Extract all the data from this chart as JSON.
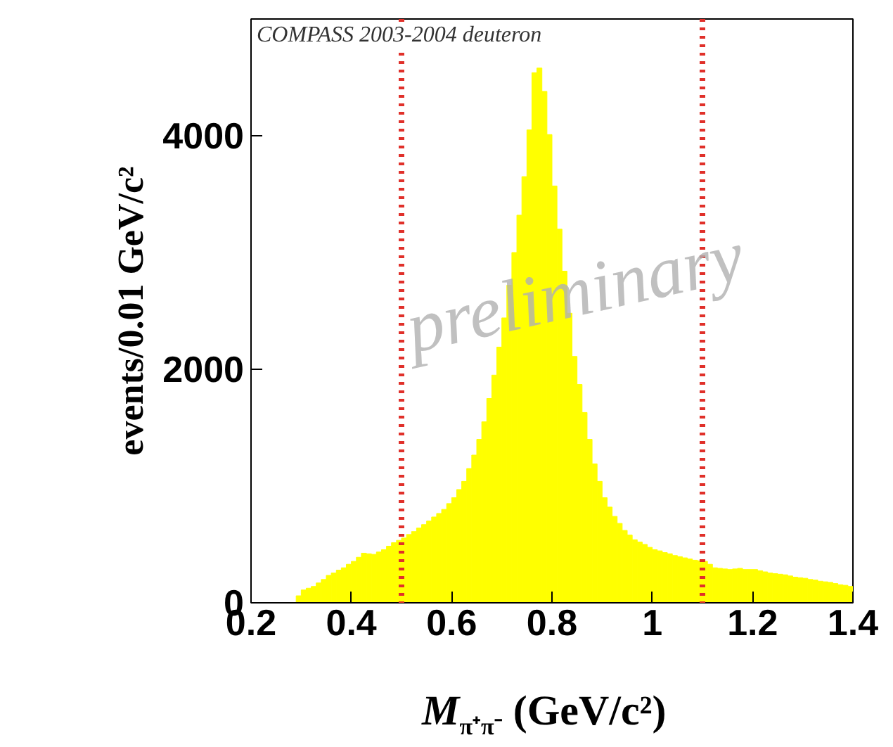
{
  "chart_data": {
    "type": "histogram",
    "xlabel": "M$_{π⁺π⁻}$ (GeV/c²)",
    "ylabel": "events/0.01 GeV/c²",
    "annotations": [
      "COMPASS 2003-2004 deuteron",
      "preliminary"
    ],
    "color": "#ffff00",
    "bins": [
      0.2,
      0.21,
      0.22,
      0.23,
      0.24,
      0.25,
      0.26,
      0.27,
      0.28,
      0.29,
      0.3,
      0.31,
      0.32,
      0.33,
      0.34,
      0.35,
      0.36,
      0.37,
      0.38,
      0.39,
      0.4,
      0.41,
      0.42,
      0.43,
      0.44,
      0.45,
      0.46,
      0.47,
      0.48,
      0.49,
      0.5,
      0.51,
      0.52,
      0.53,
      0.54,
      0.55,
      0.56,
      0.57,
      0.58,
      0.59,
      0.6,
      0.61,
      0.62,
      0.63,
      0.64,
      0.65,
      0.66,
      0.67,
      0.68,
      0.69,
      0.7,
      0.71,
      0.72,
      0.73,
      0.74,
      0.75,
      0.76,
      0.77,
      0.78,
      0.79,
      0.8,
      0.81,
      0.82,
      0.83,
      0.84,
      0.85,
      0.86,
      0.87,
      0.88,
      0.89,
      0.9,
      0.91,
      0.92,
      0.93,
      0.94,
      0.95,
      0.96,
      0.97,
      0.98,
      0.99,
      1.0,
      1.01,
      1.02,
      1.03,
      1.04,
      1.05,
      1.06,
      1.07,
      1.08,
      1.09,
      1.1,
      1.11,
      1.12,
      1.13,
      1.14,
      1.15,
      1.16,
      1.17,
      1.18,
      1.19,
      1.2,
      1.21,
      1.22,
      1.23,
      1.24,
      1.25,
      1.26,
      1.27,
      1.28,
      1.29,
      1.3,
      1.31,
      1.32,
      1.33,
      1.34,
      1.35,
      1.36,
      1.37,
      1.38,
      1.39,
      1.4
    ],
    "values": [
      0,
      0,
      0,
      0,
      0,
      0,
      0,
      0,
      0,
      60,
      110,
      125,
      140,
      170,
      200,
      235,
      255,
      280,
      300,
      330,
      355,
      390,
      425,
      420,
      415,
      435,
      455,
      485,
      515,
      535,
      555,
      585,
      610,
      640,
      670,
      700,
      735,
      765,
      800,
      850,
      900,
      970,
      1040,
      1150,
      1265,
      1400,
      1550,
      1750,
      1950,
      2190,
      2440,
      2720,
      3000,
      3320,
      3650,
      4050,
      4540,
      4580,
      4380,
      4010,
      3570,
      3200,
      2840,
      2480,
      2110,
      1870,
      1630,
      1400,
      1190,
      1040,
      900,
      820,
      740,
      680,
      620,
      580,
      540,
      520,
      500,
      475,
      455,
      445,
      430,
      420,
      405,
      395,
      385,
      375,
      365,
      360,
      355,
      330,
      300,
      295,
      290,
      285,
      290,
      295,
      285,
      285,
      285,
      275,
      265,
      255,
      250,
      245,
      240,
      230,
      220,
      215,
      210,
      200,
      195,
      185,
      180,
      175,
      165,
      155,
      150,
      140
    ],
    "xlim": [
      0.2,
      1.4
    ],
    "xticks": [
      0.2,
      0.4,
      0.6,
      0.8,
      1,
      1.2,
      1.4
    ],
    "ylim": [
      0,
      5000
    ],
    "yticks": [
      0,
      2000,
      4000
    ],
    "ref_lines": [
      {
        "axis": "x",
        "value": 0.5,
        "color": "#e0302a",
        "line_style": "dotted"
      },
      {
        "axis": "x",
        "value": 1.1,
        "color": "#e0302a",
        "line_style": "dotted"
      }
    ],
    "grid": false
  }
}
